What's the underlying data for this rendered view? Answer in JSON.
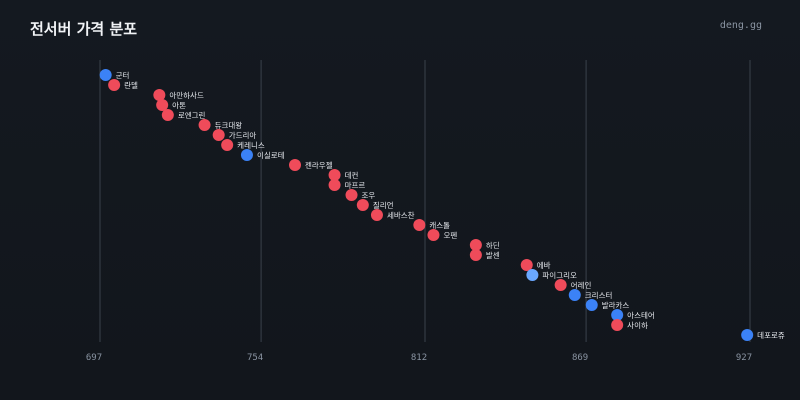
{
  "header": {
    "title": "전서버 가격 분포",
    "brand": "deng.gg"
  },
  "colors": {
    "red": "#ef4b5a",
    "blue": "#3b82f6",
    "lightblue": "#6aa8ff",
    "grid": "#3a414b",
    "background": "#13171d"
  },
  "chart_data": {
    "type": "scatter",
    "xlim": [
      697,
      927
    ],
    "xticks": [
      697,
      754,
      812,
      869,
      927
    ],
    "grid": true,
    "points": [
      {
        "label": "군터",
        "x": 699,
        "color": "blue"
      },
      {
        "label": "란델",
        "x": 702,
        "color": "red"
      },
      {
        "label": "아만하사드",
        "x": 718,
        "color": "red"
      },
      {
        "label": "아톤",
        "x": 719,
        "color": "red"
      },
      {
        "label": "로엔그린",
        "x": 721,
        "color": "red"
      },
      {
        "label": "듀크대왕",
        "x": 734,
        "color": "red"
      },
      {
        "label": "가드리아",
        "x": 739,
        "color": "red"
      },
      {
        "label": "케레니스",
        "x": 742,
        "color": "red"
      },
      {
        "label": "이실로테",
        "x": 749,
        "color": "blue"
      },
      {
        "label": "젠라우젤",
        "x": 766,
        "color": "red"
      },
      {
        "label": "데컨",
        "x": 780,
        "color": "red"
      },
      {
        "label": "마프르",
        "x": 780,
        "color": "red"
      },
      {
        "label": "조우",
        "x": 786,
        "color": "red"
      },
      {
        "label": "질리언",
        "x": 790,
        "color": "red"
      },
      {
        "label": "세바스찬",
        "x": 795,
        "color": "red"
      },
      {
        "label": "캐스톨",
        "x": 810,
        "color": "red"
      },
      {
        "label": "오펜",
        "x": 815,
        "color": "red"
      },
      {
        "label": "하딘",
        "x": 830,
        "color": "red"
      },
      {
        "label": "발센",
        "x": 830,
        "color": "red"
      },
      {
        "label": "에바",
        "x": 848,
        "color": "red"
      },
      {
        "label": "파이그리오",
        "x": 850,
        "color": "lightblue"
      },
      {
        "label": "어레인",
        "x": 860,
        "color": "red"
      },
      {
        "label": "크리스터",
        "x": 865,
        "color": "blue"
      },
      {
        "label": "발라카스",
        "x": 871,
        "color": "blue"
      },
      {
        "label": "아스테어",
        "x": 880,
        "color": "blue"
      },
      {
        "label": "사이하",
        "x": 880,
        "color": "red"
      },
      {
        "label": "데포로쥬",
        "x": 926,
        "color": "blue"
      }
    ]
  }
}
